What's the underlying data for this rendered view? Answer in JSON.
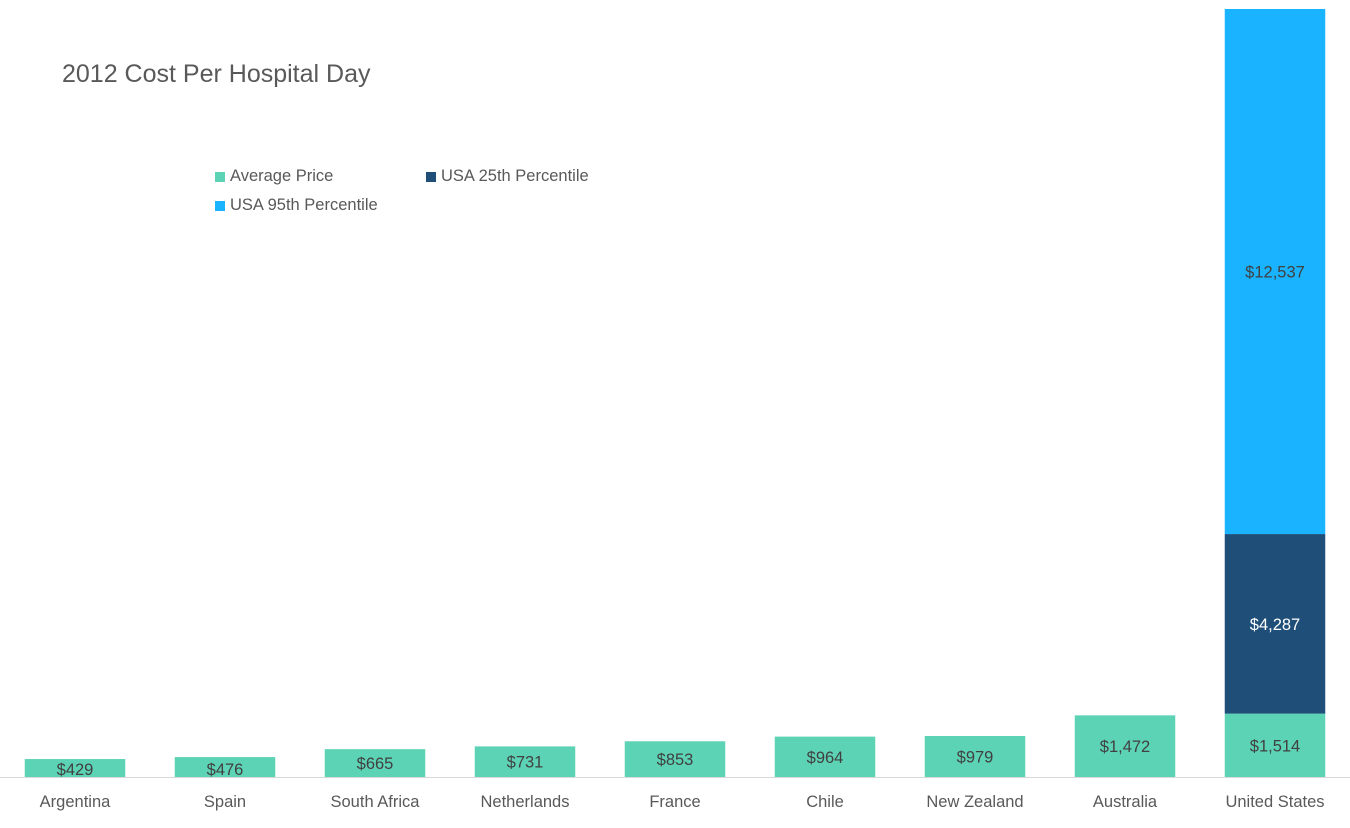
{
  "chart_data": {
    "type": "bar",
    "stacked": true,
    "title": "2012 Cost Per Hospital Day",
    "xlabel": "",
    "ylabel": "",
    "ylim": [
      0,
      18338
    ],
    "grid": false,
    "legend_position": "top-left",
    "categories": [
      "Argentina",
      "Spain",
      "South Africa",
      "Netherlands",
      "France",
      "Chile",
      "New Zealand",
      "Australia",
      "United States"
    ],
    "series": [
      {
        "name": "Average Price",
        "color": "#5dd3b6",
        "label_color": "#404040",
        "values": [
          429,
          476,
          665,
          731,
          853,
          964,
          979,
          1472,
          1514
        ],
        "labels": [
          "$429",
          "$476",
          "$665",
          "$731",
          "$853",
          "$964",
          "$979",
          "$1,472",
          "$1,514"
        ]
      },
      {
        "name": "USA 25th Percentile",
        "color": "#1f4e79",
        "label_color": "#ffffff",
        "values": [
          null,
          null,
          null,
          null,
          null,
          null,
          null,
          null,
          4287
        ],
        "labels": [
          null,
          null,
          null,
          null,
          null,
          null,
          null,
          null,
          "$4,287"
        ]
      },
      {
        "name": "USA 95th Percentile",
        "color": "#1ab3ff",
        "label_color": "#404040",
        "values": [
          null,
          null,
          null,
          null,
          null,
          null,
          null,
          null,
          12537
        ],
        "labels": [
          null,
          null,
          null,
          null,
          null,
          null,
          null,
          null,
          "$12,537"
        ]
      }
    ]
  }
}
